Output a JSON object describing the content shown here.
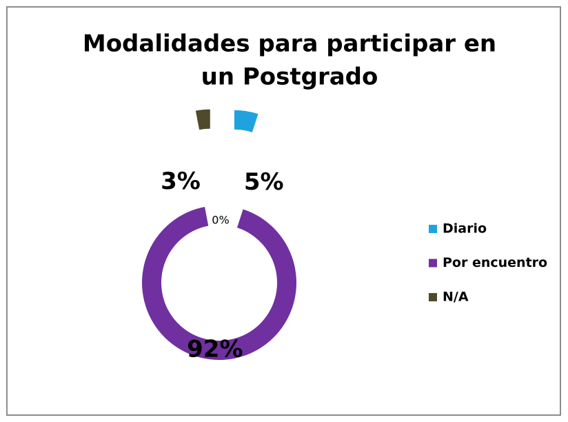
{
  "chart_data": {
    "type": "doughnut",
    "title": [
      "Modalidades para participar en",
      "un Postgrado"
    ],
    "categories": [
      "Diario",
      "Por encuentro",
      "N/A"
    ],
    "values": [
      5,
      92,
      3
    ],
    "value_labels": [
      "5%",
      "92%",
      "3%"
    ],
    "colors": [
      "#1fa3e0",
      "#7030a0",
      "#4f4a2c"
    ],
    "annotation": "0%",
    "legend": "right"
  }
}
